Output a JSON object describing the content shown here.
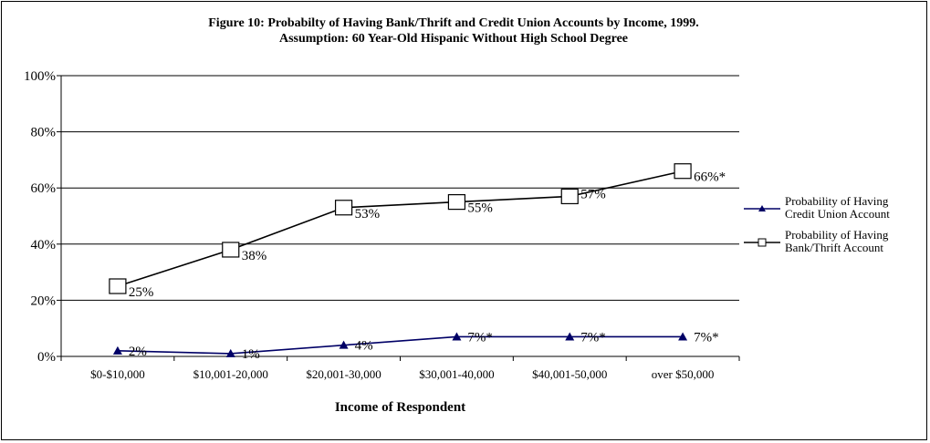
{
  "chart_data": {
    "type": "line",
    "title": "Figure 10: Probabilty of Having Bank/Thrift and Credit Union Accounts by Income, 1999.",
    "subtitle": "Assumption: 60 Year-Old Hispanic Without High School Degree",
    "xlabel": "Income of Respondent",
    "ylabel": "",
    "categories": [
      "$0-$10,000",
      "$10,001-20,000",
      "$20,001-30,000",
      "$30,001-40,000",
      "$40,001-50,000",
      "over $50,000"
    ],
    "yticks": [
      "0%",
      "20%",
      "40%",
      "60%",
      "80%",
      "100%"
    ],
    "ylim": [
      0,
      100
    ],
    "grid": true,
    "legend_position": "right",
    "series": [
      {
        "name": "Probability of Having Credit Union Account",
        "values": [
          2,
          1,
          4,
          7,
          7,
          7
        ],
        "labels": [
          "2%",
          "1%",
          "4%",
          "7%*",
          "7%*",
          "7%*"
        ],
        "color": "#000066",
        "marker": "triangle"
      },
      {
        "name": "Probability of Having Bank/Thrift Account",
        "values": [
          25,
          38,
          53,
          55,
          57,
          66
        ],
        "labels": [
          "25%",
          "38%",
          "53%",
          "55%",
          "57%",
          "66%*"
        ],
        "color": "#000000",
        "marker": "square"
      }
    ]
  }
}
